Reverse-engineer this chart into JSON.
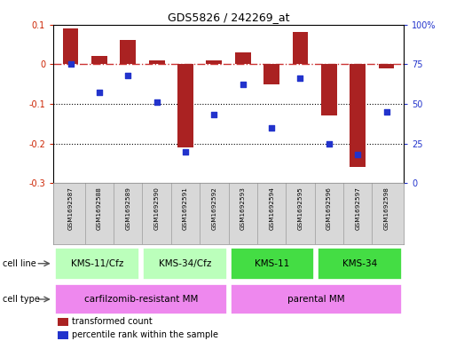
{
  "title": "GDS5826 / 242269_at",
  "samples": [
    "GSM1692587",
    "GSM1692588",
    "GSM1692589",
    "GSM1692590",
    "GSM1692591",
    "GSM1692592",
    "GSM1692593",
    "GSM1692594",
    "GSM1692595",
    "GSM1692596",
    "GSM1692597",
    "GSM1692598"
  ],
  "transformed_count": [
    0.09,
    0.02,
    0.06,
    0.01,
    -0.21,
    0.01,
    0.03,
    -0.05,
    0.08,
    -0.13,
    -0.26,
    -0.01
  ],
  "percentile_rank": [
    75,
    57,
    68,
    51,
    20,
    43,
    62,
    35,
    66,
    25,
    18,
    45
  ],
  "ylim_left": [
    -0.3,
    0.1
  ],
  "ylim_right": [
    0,
    100
  ],
  "yticks_left": [
    -0.3,
    -0.2,
    -0.1,
    0.0,
    0.1
  ],
  "yticks_right": [
    0,
    25,
    50,
    75,
    100
  ],
  "ytick_labels_left": [
    "-0.3",
    "-0.2",
    "-0.1",
    "0",
    "0.1"
  ],
  "ytick_labels_right": [
    "0",
    "25",
    "50",
    "75",
    "100%"
  ],
  "bar_color": "#aa2222",
  "dot_color": "#2233cc",
  "dashed_line_color": "#cc3333",
  "cell_line_groups": [
    {
      "label": "KMS-11/Cfz",
      "start": 0,
      "end": 3,
      "color": "#bbffbb"
    },
    {
      "label": "KMS-34/Cfz",
      "start": 3,
      "end": 6,
      "color": "#bbffbb"
    },
    {
      "label": "KMS-11",
      "start": 6,
      "end": 9,
      "color": "#44dd44"
    },
    {
      "label": "KMS-34",
      "start": 9,
      "end": 12,
      "color": "#44dd44"
    }
  ],
  "cell_type_groups": [
    {
      "label": "carfilzomib-resistant MM",
      "start": 0,
      "end": 6,
      "color": "#ee88ee"
    },
    {
      "label": "parental MM",
      "start": 6,
      "end": 12,
      "color": "#ee88ee"
    }
  ],
  "legend_items": [
    {
      "label": "transformed count",
      "color": "#aa2222"
    },
    {
      "label": "percentile rank within the sample",
      "color": "#2233cc"
    }
  ]
}
